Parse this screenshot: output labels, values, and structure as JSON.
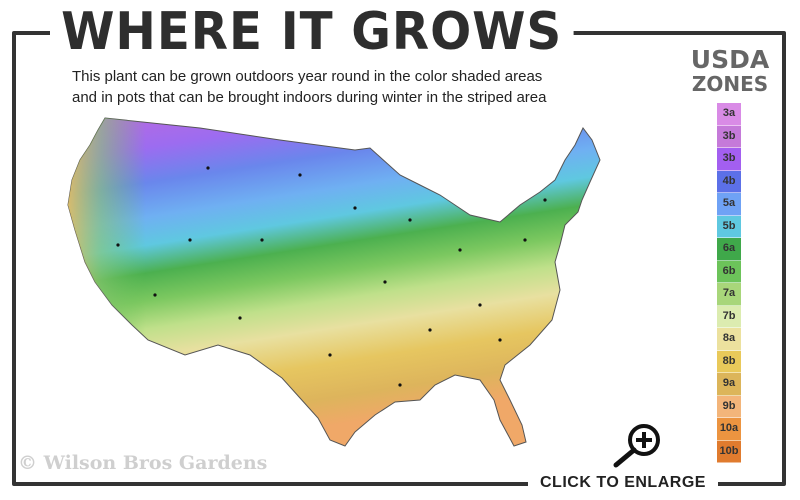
{
  "header": {
    "title": "WHERE IT GROWS",
    "subtitle_line1": "This plant can be grown outdoors year round in the color shaded areas",
    "subtitle_line2": "and in pots that can be brought indoors during winter in the striped area"
  },
  "legend": {
    "title_line1": "USDA",
    "title_line2": "ZONES",
    "zones": [
      {
        "label": "3a",
        "color": "#d98be6"
      },
      {
        "label": "3b",
        "color": "#c57ad9"
      },
      {
        "label": "3b",
        "color": "#a35ff0"
      },
      {
        "label": "4b",
        "color": "#5c70e8"
      },
      {
        "label": "5a",
        "color": "#6fa2f5"
      },
      {
        "label": "5b",
        "color": "#5fc8e0"
      },
      {
        "label": "6a",
        "color": "#3fa84a"
      },
      {
        "label": "6b",
        "color": "#6cc35a"
      },
      {
        "label": "7a",
        "color": "#a8d67a"
      },
      {
        "label": "7b",
        "color": "#dcecb0"
      },
      {
        "label": "8a",
        "color": "#ece19e"
      },
      {
        "label": "8b",
        "color": "#e9c95a"
      },
      {
        "label": "9a",
        "color": "#dcb55a"
      },
      {
        "label": "9b",
        "color": "#f3b57a"
      },
      {
        "label": "10a",
        "color": "#ec9440"
      },
      {
        "label": "10b",
        "color": "#e07b2e"
      }
    ]
  },
  "footer": {
    "copyright": "© Wilson Bros Gardens",
    "enlarge_label": "CLICK TO ENLARGE",
    "enlarge_icon": "zoom-in-icon"
  }
}
